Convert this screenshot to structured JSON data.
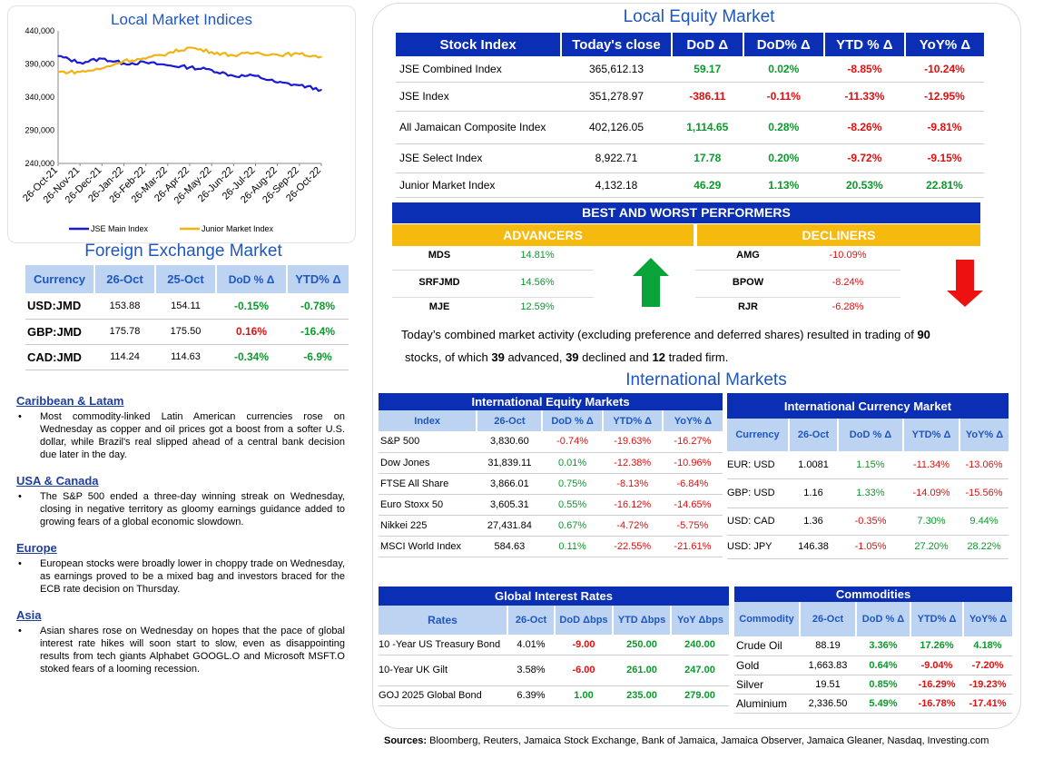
{
  "local_indices_chart": {
    "title": "Local Market Indices",
    "y_ticks": [
      "440,000",
      "390,000",
      "340,000",
      "290,000",
      "240,000"
    ],
    "x_ticks": [
      "26-Oct-21",
      "26-Nov-21",
      "26-Dec-21",
      "26-Jan-22",
      "26-Feb-22",
      "26-Mar-22",
      "26-Apr-22",
      "26-May-22",
      "26-Jun-22",
      "26-Jul-22",
      "26-Aug-22",
      "26-Sep-22",
      "26-Oct-22"
    ],
    "legend": [
      "JSE Main Index",
      "Junior Market Index"
    ],
    "colors": {
      "main": "#1a1ad4",
      "junior": "#f2b311"
    },
    "chart_data": {
      "type": "line",
      "ylim": [
        240000,
        440000
      ],
      "x": [
        "26-Oct-21",
        "26-Nov-21",
        "26-Dec-21",
        "26-Jan-22",
        "26-Feb-22",
        "26-Mar-22",
        "26-Apr-22",
        "26-May-22",
        "26-Jun-22",
        "26-Jul-22",
        "26-Aug-22",
        "26-Sep-22",
        "26-Oct-22"
      ],
      "series": [
        {
          "name": "JSE Main Index",
          "values": [
            402000,
            392000,
            398000,
            391000,
            392000,
            388000,
            385000,
            381000,
            372000,
            372000,
            362000,
            358000,
            351000
          ]
        },
        {
          "name": "Junior Market Index",
          "values": [
            378000,
            378000,
            383000,
            395000,
            398000,
            406000,
            415000,
            408000,
            403000,
            407000,
            404000,
            405000,
            401000
          ]
        }
      ]
    }
  },
  "fx": {
    "title": "Foreign Exchange Market",
    "headers": [
      "Currency",
      "26-Oct",
      "25-Oct",
      "DoD % Δ",
      "YTD% Δ"
    ],
    "rows": [
      {
        "cur": "USD:JMD",
        "a": "153.88",
        "b": "154.11",
        "dod": "-0.15%",
        "ytd": "-0.78%",
        "dod_cls": "pos",
        "ytd_cls": "pos"
      },
      {
        "cur": "GBP:JMD",
        "a": "175.78",
        "b": "175.50",
        "dod": "0.16%",
        "ytd": "-16.4%",
        "dod_cls": "neg",
        "ytd_cls": "pos"
      },
      {
        "cur": "CAD:JMD",
        "a": "114.24",
        "b": "114.63",
        "dod": "-0.34%",
        "ytd": "-6.9%",
        "dod_cls": "pos",
        "ytd_cls": "pos"
      }
    ]
  },
  "news": [
    {
      "head": "Caribbean & Latam",
      "body": "Most commodity-linked Latin American currencies rose on Wednesday as copper and oil prices got a boost from a softer U.S. dollar, while Brazil's real slipped ahead of a central bank decision due later in the day."
    },
    {
      "head": "USA & Canada",
      "body": "The S&P 500 ended a three-day winning streak on Wednesday, closing in negative territory as gloomy earnings guidance added to growing fears of a global economic slowdown."
    },
    {
      "head": "Europe",
      "body": "European stocks were broadly lower in choppy trade on Wednesday, as earnings proved to be a mixed bag and investors braced for the ECB rate decision on Thursday."
    },
    {
      "head": "Asia",
      "body": "Asian shares rose on Wednesday on hopes that the pace of global interest rate hikes will soon start to slow, even as disappointing results from tech giants Alphabet GOOGL.O and Microsoft MSFT.O stoked fears of a looming recession."
    }
  ],
  "equity": {
    "title": "Local Equity Market",
    "headers": [
      "Stock Index",
      "Today's close",
      "DoD  Δ",
      "DoD% Δ",
      "YTD % Δ",
      "YoY% Δ"
    ],
    "rows": [
      {
        "name": "JSE Combined Index",
        "close": "365,612.13",
        "dod": "59.17",
        "dodp": "0.02%",
        "ytd": "-8.85%",
        "yoy": "-10.24%",
        "c1": "pos",
        "c2": "pos",
        "c3": "neg",
        "c4": "neg"
      },
      {
        "name": "JSE Index",
        "close": "351,278.97",
        "dod": "-386.11",
        "dodp": "-0.11%",
        "ytd": "-11.33%",
        "yoy": "-12.95%",
        "c1": "neg",
        "c2": "neg",
        "c3": "neg",
        "c4": "neg"
      },
      {
        "name": "All Jamaican Composite Index",
        "close": "402,126.05",
        "dod": "1,114.65",
        "dodp": "0.28%",
        "ytd": "-8.26%",
        "yoy": "-9.81%",
        "c1": "pos",
        "c2": "pos",
        "c3": "neg",
        "c4": "neg"
      },
      {
        "name": "JSE Select Index",
        "close": "8,922.71",
        "dod": "17.78",
        "dodp": "0.20%",
        "ytd": "-9.72%",
        "yoy": "-9.15%",
        "c1": "pos",
        "c2": "pos",
        "c3": "neg",
        "c4": "neg"
      },
      {
        "name": "Junior Market Index",
        "close": "4,132.18",
        "dod": "46.29",
        "dodp": "1.13%",
        "ytd": "20.53%",
        "yoy": "22.81%",
        "c1": "pos",
        "c2": "pos",
        "c3": "pos",
        "c4": "pos"
      }
    ]
  },
  "performers": {
    "title": "BEST AND WORST PERFORMERS",
    "advancers_label": "ADVANCERS",
    "decliners_label": "DECLINERS",
    "advancers": [
      {
        "sym": "MDS",
        "pct": "14.81%"
      },
      {
        "sym": "SRFJMD",
        "pct": "14.56%"
      },
      {
        "sym": "MJE",
        "pct": "12.59%"
      }
    ],
    "decliners": [
      {
        "sym": "AMG",
        "pct": "-10.09%"
      },
      {
        "sym": "BPOW",
        "pct": "-8.24%"
      },
      {
        "sym": "RJR",
        "pct": "-6.28%"
      }
    ]
  },
  "summary": {
    "p1": "Today’s combined market activity (excluding preference and deferred shares) resulted in trading of ",
    "n1": "90",
    "p2": "stocks, of which ",
    "n2": "39",
    "p3": " advanced, ",
    "n3": "39",
    "p4": " declined and ",
    "n4": "12",
    "p5": " traded firm."
  },
  "intl_title": "International Markets",
  "intl_equity": {
    "title": "International Equity Markets",
    "headers": [
      "Index",
      "26-Oct",
      "DoD % Δ",
      "YTD% Δ",
      "YoY% Δ"
    ],
    "rows": [
      {
        "name": "S&P 500",
        "v": "3,830.60",
        "dod": "-0.74%",
        "ytd": "-19.63%",
        "yoy": "-16.27%",
        "c1": "neg"
      },
      {
        "name": "Dow Jones",
        "v": "31,839.11",
        "dod": "0.01%",
        "ytd": "-12.38%",
        "yoy": "-10.96%",
        "c1": "pos"
      },
      {
        "name": "FTSE All Share",
        "v": "3,866.01",
        "dod": "0.75%",
        "ytd": "-8.13%",
        "yoy": "-6.84%",
        "c1": "pos"
      },
      {
        "name": "Euro Stoxx 50",
        "v": "3,605.31",
        "dod": "0.55%",
        "ytd": "-16.12%",
        "yoy": "-14.65%",
        "c1": "pos"
      },
      {
        "name": "Nikkei 225",
        "v": "27,431.84",
        "dod": "0.67%",
        "ytd": "-4.72%",
        "yoy": "-5.75%",
        "c1": "pos"
      },
      {
        "name": "MSCI World Index",
        "v": "584.63",
        "dod": "0.11%",
        "ytd": "-22.55%",
        "yoy": "-21.61%",
        "c1": "pos"
      }
    ]
  },
  "intl_currency": {
    "title": "International Currency Market",
    "headers": [
      "Currency",
      "26-Oct",
      "DoD % Δ",
      "YTD% Δ",
      "YoY% Δ"
    ],
    "rows": [
      {
        "name": "EUR: USD",
        "v": "1.0081",
        "dod": "1.15%",
        "ytd": "-11.34%",
        "yoy": "-13.06%",
        "c1": "pos",
        "c2": "neg",
        "c3": "neg"
      },
      {
        "name": "GBP: USD",
        "v": "1.16",
        "dod": "1.33%",
        "ytd": "-14.09%",
        "yoy": "-15.56%",
        "c1": "pos",
        "c2": "neg",
        "c3": "neg"
      },
      {
        "name": "USD: CAD",
        "v": "1.36",
        "dod": "-0.35%",
        "ytd": "7.30%",
        "yoy": "9.44%",
        "c1": "neg",
        "c2": "pos",
        "c3": "pos"
      },
      {
        "name": "USD: JPY",
        "v": "146.38",
        "dod": "-1.05%",
        "ytd": "27.20%",
        "yoy": "28.22%",
        "c1": "neg",
        "c2": "pos",
        "c3": "pos"
      }
    ]
  },
  "rates": {
    "title": "Global Interest Rates",
    "headers": [
      "Rates",
      "26-Oct",
      "DoD Δbps",
      "YTD Δbps",
      "YoY Δbps"
    ],
    "rows": [
      {
        "name": "10 -Year US Treasury Bond",
        "v": "4.01%",
        "dod": "-9.00",
        "ytd": "250.00",
        "yoy": "240.00",
        "c1": "neg"
      },
      {
        "name": "10-Year UK Gilt",
        "v": "3.58%",
        "dod": "-6.00",
        "ytd": "261.00",
        "yoy": "247.00",
        "c1": "neg"
      },
      {
        "name": "GOJ 2025 Global Bond",
        "v": "6.39%",
        "dod": "1.00",
        "ytd": "235.00",
        "yoy": "279.00",
        "c1": "pos"
      }
    ]
  },
  "commodities": {
    "title": "Commodities",
    "headers": [
      "Commodity",
      "26-Oct",
      "DoD % Δ",
      "YTD% Δ",
      "YoY% Δ"
    ],
    "rows": [
      {
        "name": "Crude Oil",
        "v": "88.19",
        "dod": "3.36%",
        "ytd": "17.26%",
        "yoy": "4.18%",
        "c1": "pos",
        "c2": "pos",
        "c3": "pos"
      },
      {
        "name": "Gold",
        "v": "1,663.83",
        "dod": "0.64%",
        "ytd": "-9.04%",
        "yoy": "-7.20%",
        "c1": "pos",
        "c2": "neg",
        "c3": "neg"
      },
      {
        "name": "Silver",
        "v": "19.51",
        "dod": "0.85%",
        "ytd": "-16.29%",
        "yoy": "-19.23%",
        "c1": "pos",
        "c2": "neg",
        "c3": "neg"
      },
      {
        "name": "Aluminium",
        "v": "2,336.50",
        "dod": "5.49%",
        "ytd": "-16.78%",
        "yoy": "-17.41%",
        "c1": "pos",
        "c2": "neg",
        "c3": "neg"
      }
    ]
  },
  "sources": {
    "label": "Sources:",
    "text": " Bloomberg, Reuters, Jamaica Stock Exchange, Bank of Jamaica, Jamaica Observer, Jamaica Gleaner, Nasdaq, Investing.com"
  }
}
